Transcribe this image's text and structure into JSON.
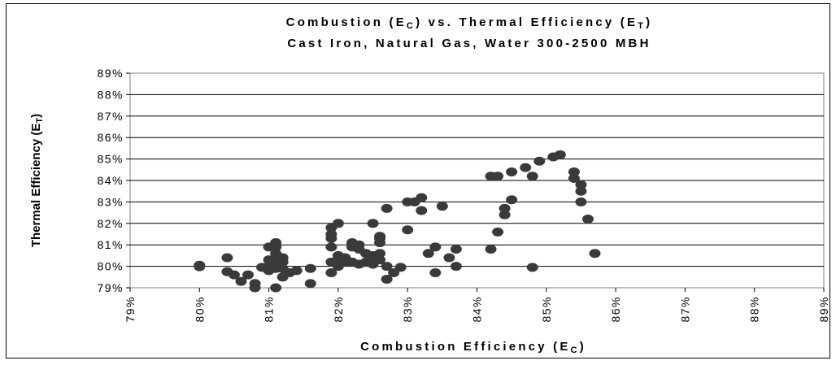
{
  "chart_data": {
    "type": "scatter",
    "title_parts": [
      "Combustion (E",
      "C",
      ") vs. Thermal Efficiency (E",
      "T",
      ")"
    ],
    "subtitle": "Cast Iron, Natural Gas, Water 300-2500 MBH",
    "xlabel_parts": [
      "Combustion Efficiency (E",
      "C",
      ")"
    ],
    "ylabel_parts": [
      "Thermal Efficiency (E",
      "T",
      ")"
    ],
    "xlim": [
      79,
      89
    ],
    "ylim": [
      79,
      89
    ],
    "x_ticks": [
      "79%",
      "80%",
      "81%",
      "82%",
      "83%",
      "84%",
      "85%",
      "86%",
      "87%",
      "88%",
      "89%"
    ],
    "y_ticks": [
      "79%",
      "80%",
      "81%",
      "82%",
      "83%",
      "84%",
      "85%",
      "86%",
      "87%",
      "88%",
      "89%"
    ],
    "grid": "horizontal",
    "legend": "none",
    "marker_color": "#3a3a3a",
    "points": [
      [
        80.0,
        80.05
      ],
      [
        80.0,
        79.98
      ],
      [
        80.4,
        80.4
      ],
      [
        80.4,
        79.75
      ],
      [
        80.5,
        79.6
      ],
      [
        80.6,
        79.3
      ],
      [
        80.7,
        79.6
      ],
      [
        80.8,
        79.2
      ],
      [
        80.8,
        79.0
      ],
      [
        80.9,
        79.95
      ],
      [
        81.0,
        80.9
      ],
      [
        81.0,
        80.3
      ],
      [
        81.0,
        80.0
      ],
      [
        81.0,
        79.8
      ],
      [
        81.1,
        81.1
      ],
      [
        81.1,
        80.9
      ],
      [
        81.1,
        80.6
      ],
      [
        81.1,
        80.3
      ],
      [
        81.1,
        80.0
      ],
      [
        81.1,
        79.9
      ],
      [
        81.1,
        79.0
      ],
      [
        81.2,
        80.4
      ],
      [
        81.2,
        80.2
      ],
      [
        81.2,
        79.9
      ],
      [
        81.2,
        79.5
      ],
      [
        81.3,
        79.7
      ],
      [
        81.4,
        79.8
      ],
      [
        81.6,
        79.9
      ],
      [
        81.6,
        79.2
      ],
      [
        81.9,
        81.8
      ],
      [
        81.9,
        81.5
      ],
      [
        81.9,
        81.3
      ],
      [
        81.9,
        80.9
      ],
      [
        81.9,
        80.2
      ],
      [
        81.9,
        79.7
      ],
      [
        82.0,
        82.0
      ],
      [
        82.0,
        80.5
      ],
      [
        82.0,
        80.2
      ],
      [
        82.0,
        80.0
      ],
      [
        82.1,
        80.4
      ],
      [
        82.1,
        80.2
      ],
      [
        82.2,
        81.1
      ],
      [
        82.2,
        80.9
      ],
      [
        82.2,
        80.2
      ],
      [
        82.3,
        81.0
      ],
      [
        82.3,
        80.8
      ],
      [
        82.3,
        80.1
      ],
      [
        82.4,
        80.6
      ],
      [
        82.4,
        80.2
      ],
      [
        82.5,
        82.0
      ],
      [
        82.5,
        80.5
      ],
      [
        82.5,
        80.1
      ],
      [
        82.6,
        81.4
      ],
      [
        82.6,
        81.3
      ],
      [
        82.6,
        81.1
      ],
      [
        82.6,
        80.6
      ],
      [
        82.6,
        80.3
      ],
      [
        82.7,
        82.7
      ],
      [
        82.7,
        80.0
      ],
      [
        82.7,
        79.4
      ],
      [
        82.8,
        79.7
      ],
      [
        82.9,
        79.95
      ],
      [
        83.0,
        83.0
      ],
      [
        83.0,
        81.7
      ],
      [
        83.1,
        83.0
      ],
      [
        83.2,
        83.2
      ],
      [
        83.2,
        82.6
      ],
      [
        83.3,
        80.6
      ],
      [
        83.4,
        80.9
      ],
      [
        83.4,
        79.7
      ],
      [
        83.5,
        82.8
      ],
      [
        83.6,
        80.4
      ],
      [
        83.7,
        80.8
      ],
      [
        83.7,
        80.0
      ],
      [
        84.2,
        84.2
      ],
      [
        84.2,
        80.8
      ],
      [
        84.3,
        84.2
      ],
      [
        84.3,
        81.6
      ],
      [
        84.4,
        82.7
      ],
      [
        84.4,
        82.4
      ],
      [
        84.5,
        84.4
      ],
      [
        84.5,
        83.1
      ],
      [
        84.7,
        84.6
      ],
      [
        84.8,
        84.2
      ],
      [
        84.8,
        79.95
      ],
      [
        84.9,
        84.9
      ],
      [
        85.1,
        85.1
      ],
      [
        85.2,
        85.2
      ],
      [
        85.4,
        84.4
      ],
      [
        85.4,
        84.1
      ],
      [
        85.5,
        83.8
      ],
      [
        85.5,
        83.5
      ],
      [
        85.5,
        83.0
      ],
      [
        85.6,
        82.2
      ],
      [
        85.7,
        80.6
      ]
    ]
  }
}
